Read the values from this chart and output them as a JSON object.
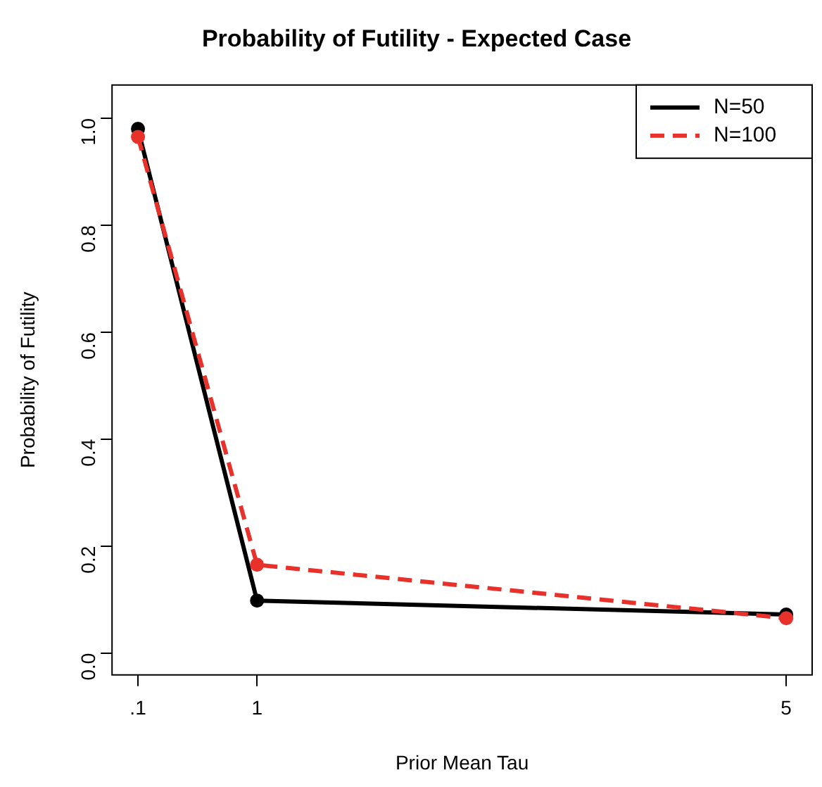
{
  "chart_data": {
    "type": "line",
    "title": "Probability of Futility - Expected Case",
    "xlabel": "Prior Mean Tau",
    "ylabel": "Probability of Futility",
    "x": [
      0.1,
      1,
      5
    ],
    "series": [
      {
        "name": "N=50",
        "color": "#000000",
        "values": [
          0.98,
          0.098,
          0.072
        ],
        "line_style": "solid"
      },
      {
        "name": "N=100",
        "color": "#e8312a",
        "values": [
          0.965,
          0.165,
          0.065
        ],
        "line_style": "dashed"
      }
    ],
    "xlim": [
      -0.096,
      5.196
    ],
    "xticks": [
      {
        "value": 0.1,
        "label": ".1"
      },
      1,
      5
    ],
    "ylim": [
      -0.041,
      1.062
    ],
    "yticks": [
      {
        "value": 0,
        "label": "0.0"
      },
      {
        "value": 0.2,
        "label": "0.2"
      },
      {
        "value": 0.4,
        "label": "0.4"
      },
      {
        "value": 0.6,
        "label": "0.6"
      },
      {
        "value": 0.8,
        "label": "0.8"
      },
      {
        "value": 1,
        "label": "1.0"
      }
    ],
    "grid": false,
    "legend": "top right",
    "marker": "circle"
  }
}
